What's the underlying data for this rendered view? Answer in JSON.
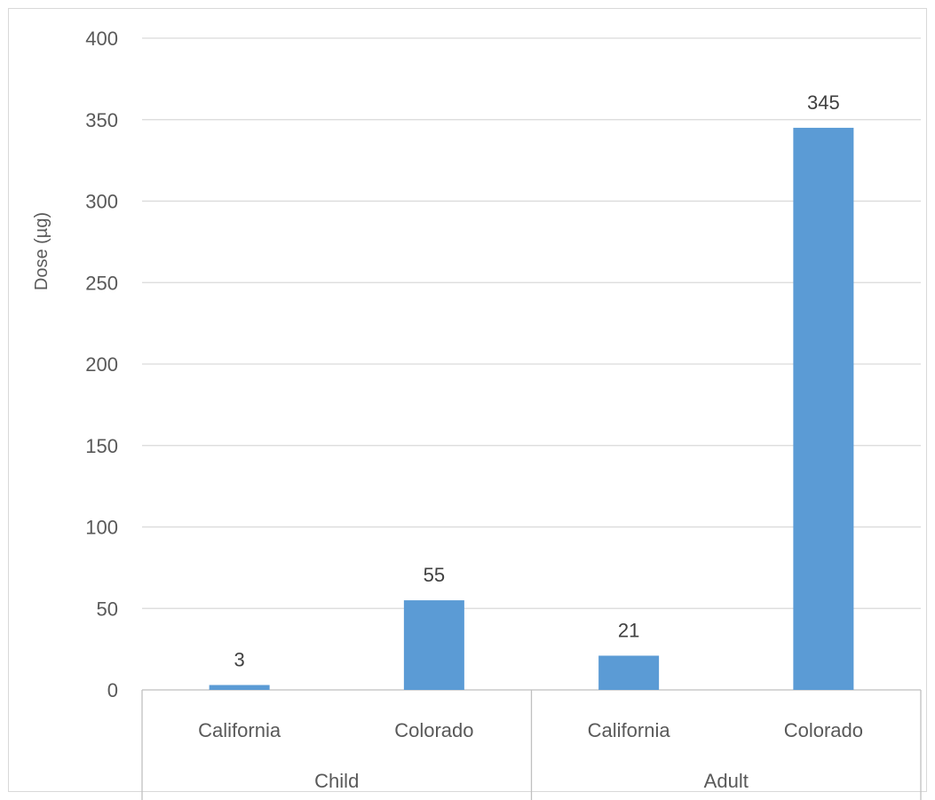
{
  "chart_data": {
    "type": "bar",
    "title": "",
    "xlabel": "",
    "ylabel": "Dose (µg)",
    "ylim": [
      0,
      400
    ],
    "y_ticks": [
      0,
      50,
      100,
      150,
      200,
      250,
      300,
      350,
      400
    ],
    "grid": true,
    "legend": "none",
    "color": "#5b9bd5",
    "groups": [
      "Child",
      "Adult"
    ],
    "categories": [
      "California",
      "Colorado",
      "California",
      "Colorado"
    ],
    "category_group": [
      "Child",
      "Child",
      "Adult",
      "Adult"
    ],
    "values": [
      3,
      55,
      21,
      345
    ],
    "data_labels": [
      "3",
      "55",
      "21",
      "345"
    ]
  }
}
